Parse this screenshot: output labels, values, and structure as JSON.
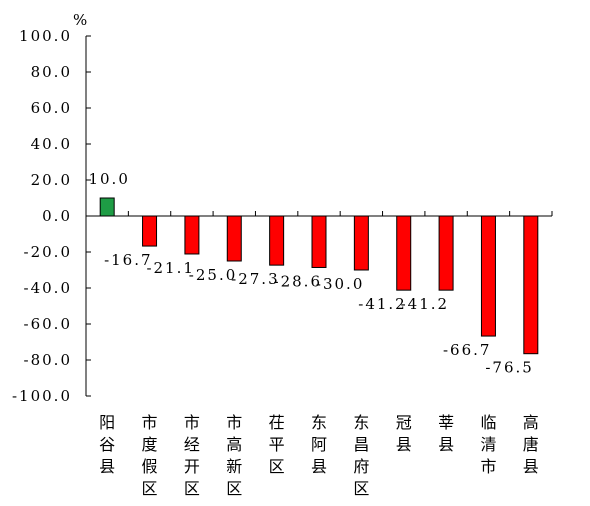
{
  "chart_data": {
    "type": "bar",
    "unit": "%",
    "categories": [
      "阳谷县",
      "市度假区",
      "市经开区",
      "市高新区",
      "茌平区",
      "东阿县",
      "东昌府区",
      "冠县",
      "莘县",
      "临清市",
      "高唐县"
    ],
    "values": [
      10.0,
      -16.7,
      -21.1,
      -25.0,
      -27.3,
      -28.6,
      -30.0,
      -41.2,
      -41.2,
      -66.7,
      -76.5
    ],
    "value_labels": [
      "10.0",
      "-16.7",
      "-21.1",
      "-25.0",
      "-27.3",
      "-28.6",
      "-30.0",
      "-41.2",
      "-41.2",
      "-66.7",
      "-76.5"
    ],
    "yticks": [
      "100.0",
      "80.0",
      "60.0",
      "40.0",
      "20.0",
      "0.0",
      "-20.0",
      "-40.0",
      "-60.0",
      "-80.0",
      "-100.0"
    ],
    "ylim": [
      -100,
      100
    ],
    "colors": {
      "positive": "#1e9c45",
      "negative": "#ff0000",
      "outline": "#000000"
    }
  }
}
